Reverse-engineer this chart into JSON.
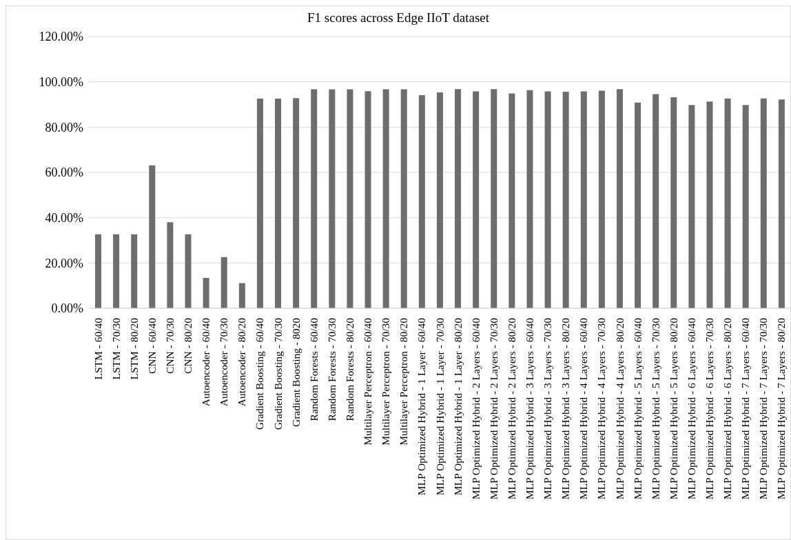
{
  "chart_data": {
    "type": "bar",
    "title": "F1 scores across Edge IIoT dataset",
    "categories": [
      "LSTM - 60/40",
      "LSTM - 70/30",
      "LSTM - 80/20",
      "CNN - 60/40",
      "CNN - 70/30",
      "CNN - 80/20",
      "Autoencoder - 60/40",
      "Autoencoder - 70/30",
      "Autoencoder - 80/20",
      "Gradient Boosting - 60/40",
      "Gradient Boosting - 70/30",
      "Gradient Boosting - 8020",
      "Random Forests - 60/40",
      "Random Forests - 70/30",
      "Random Forests - 80/20",
      "Multilayer Perceptron - 60/40",
      "Multilayer Perceptron - 70/30",
      "Multilayer Perceptron - 80/20",
      "MLP Optimized Hybrid - 1 Layer - 60/40",
      "MLP Optimized Hybrid - 1 Layer - 70/30",
      "MLP Optimized Hybrid - 1 Layer - 80/20",
      "MLP Optimized Hybrid - 2 Layers - 60/40",
      "MLP Optimized Hybrid - 2 Layers - 70/30",
      "MLP Optimized Hybrid - 2 Layers - 80/20",
      "MLP Optimized Hybrid - 3 Layers - 60/40",
      "MLP Optimized Hybrid - 3 Layers - 70/30",
      "MLP Optimized Hybrid - 3 Layers - 80/20",
      "MLP Optimized Hybrid - 4 Layers - 60/40",
      "MLP Optimized Hybrid - 4 Layers - 70/30",
      "MLP Optimized Hybrid - 4 Layers - 80/20",
      "MLP Optimized Hybrid - 5 Layers - 60/40",
      "MLP Optimized Hybrid - 5 Layers - 70/30",
      "MLP Optimized Hybrid - 5 Layers - 80/20",
      "MLP Optimized Hybrid - 6 Layers - 60/40",
      "MLP Optimized Hybrid - 6 Layers - 70/30",
      "MLP Optimized Hybrid - 6 Layers - 80/20",
      "MLP Optimized Hybrid - 7 Layers - 60/40",
      "MLP Optimized Hybrid - 7 Layers - 70/30",
      "MLP Optimized Hybrid - 7 Layers - 80/20"
    ],
    "values": [
      32.7,
      32.7,
      32.7,
      63.1,
      38.0,
      32.7,
      13.4,
      22.6,
      11.1,
      92.6,
      92.6,
      92.8,
      96.7,
      96.7,
      96.7,
      95.9,
      96.7,
      96.7,
      94.1,
      95.3,
      96.8,
      95.8,
      96.8,
      94.9,
      96.3,
      95.8,
      95.6,
      95.8,
      96.1,
      96.8,
      90.8,
      94.6,
      93.2,
      89.8,
      91.3,
      92.7,
      89.8,
      92.7,
      92.2
    ],
    "color": "#6d6d6d",
    "ylim": [
      0,
      120
    ],
    "yticks": [
      {
        "value": 0,
        "label": "0.00%"
      },
      {
        "value": 20,
        "label": "20.00%"
      },
      {
        "value": 40,
        "label": "40.00%"
      },
      {
        "value": 60,
        "label": "60.00%"
      },
      {
        "value": 80,
        "label": "80.00%"
      },
      {
        "value": 100,
        "label": "100.00%"
      },
      {
        "value": 120,
        "label": "120.00%"
      }
    ],
    "grid": "y"
  }
}
